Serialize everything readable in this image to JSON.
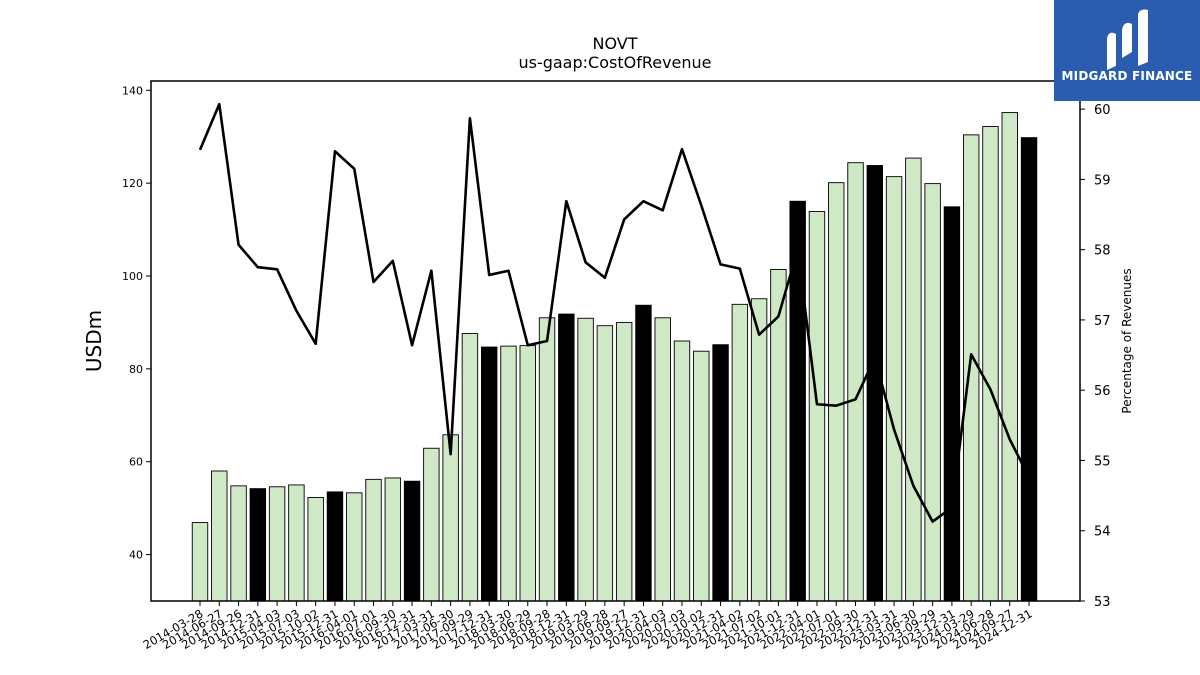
{
  "chart_data": {
    "type": "bar+line",
    "title": "NOVT",
    "subtitle": "us-gaap:CostOfRevenue",
    "ylabel": "USDm",
    "y2label": "Percentage of Revenues",
    "ylim": [
      30,
      142
    ],
    "y2lim": [
      53,
      60.4
    ],
    "yticks": [
      40,
      60,
      80,
      100,
      120,
      140
    ],
    "y2ticks": [
      53,
      54,
      55,
      56,
      57,
      58,
      59,
      60
    ],
    "categories": [
      "2014-03-28",
      "2014-06-27",
      "2014-09-26",
      "2014-12-31",
      "2015-04-03",
      "2015-07-03",
      "2015-10-02",
      "2015-12-31",
      "2016-04-01",
      "2016-07-01",
      "2016-09-30",
      "2016-12-31",
      "2017-03-31",
      "2017-06-30",
      "2017-09-29",
      "2017-12-31",
      "2018-03-30",
      "2018-06-29",
      "2018-09-28",
      "2018-12-31",
      "2019-03-29",
      "2019-06-28",
      "2019-09-27",
      "2019-12-31",
      "2020-04-03",
      "2020-07-03",
      "2020-10-02",
      "2020-12-31",
      "2021-04-02",
      "2021-07-02",
      "2021-10-01",
      "2021-12-31",
      "2022-04-01",
      "2022-07-01",
      "2022-09-30",
      "2022-12-31",
      "2023-03-31",
      "2023-06-30",
      "2023-09-29",
      "2023-12-31",
      "2024-03-29",
      "2024-06-28",
      "2024-09-27",
      "2024-12-31"
    ],
    "bars": {
      "name": "CostOfRevenue",
      "values": [
        46.9,
        58.0,
        54.8,
        54.2,
        54.6,
        55.0,
        52.3,
        53.5,
        53.3,
        56.2,
        56.5,
        55.8,
        62.9,
        65.8,
        87.6,
        84.7,
        84.9,
        85.0,
        91.0,
        91.8,
        90.9,
        89.3,
        90.0,
        93.7,
        91.0,
        86.0,
        83.8,
        85.2,
        93.9,
        95.1,
        101.4,
        116.1,
        113.9,
        120.1,
        124.4,
        123.8,
        121.4,
        125.4,
        119.9,
        114.9,
        130.4,
        132.2,
        135.2,
        129.8
      ],
      "fill_regular": "#cfe8c5",
      "fill_annual": "#000000",
      "annual_flags": [
        false,
        false,
        false,
        true,
        false,
        false,
        false,
        true,
        false,
        false,
        false,
        true,
        false,
        false,
        false,
        true,
        false,
        false,
        false,
        true,
        false,
        false,
        false,
        true,
        false,
        false,
        false,
        true,
        false,
        false,
        false,
        true,
        false,
        false,
        false,
        true,
        false,
        false,
        false,
        true,
        false,
        false,
        false,
        true
      ]
    },
    "line": {
      "name": "Percentage of Revenues",
      "values": [
        59.42,
        60.07,
        58.07,
        57.75,
        57.72,
        57.13,
        56.66,
        59.4,
        59.15,
        57.54,
        57.84,
        56.64,
        57.7,
        55.09,
        59.87,
        57.64,
        57.7,
        56.64,
        56.7,
        58.69,
        57.82,
        57.6,
        58.43,
        58.69,
        58.56,
        59.43,
        58.63,
        57.79,
        57.73,
        56.79,
        57.05,
        58.0,
        55.8,
        55.78,
        55.87,
        56.46,
        55.44,
        54.64,
        54.13,
        54.33,
        56.51,
        56.01,
        55.3,
        54.76
      ],
      "color": "#000000"
    }
  },
  "logo": {
    "text": "MIDGARD FINANCE",
    "bg": "#2a5db0"
  }
}
